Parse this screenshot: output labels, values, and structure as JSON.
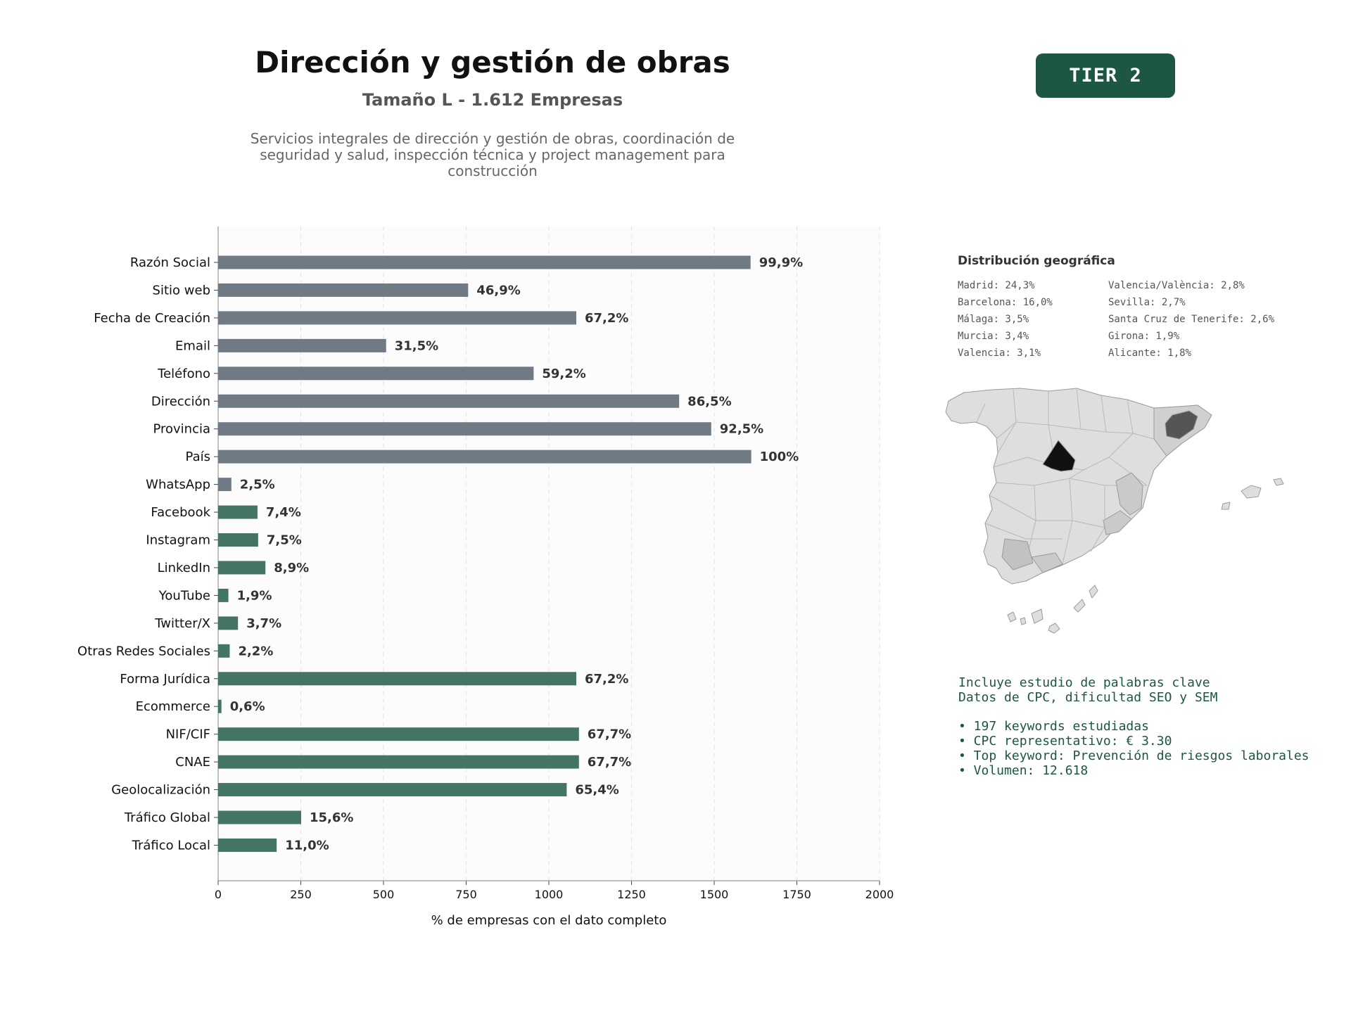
{
  "header": {
    "title": "Dirección y gestión de obras",
    "subtitle": "Tamaño L - 1.612 Empresas",
    "description": "Servicios integrales de dirección y gestión de obras, coordinación de seguridad y salud, inspección técnica y project management para construcción",
    "tier": "TIER 2"
  },
  "colors": {
    "gray_bar": "#6f7a84",
    "green_bar": "#447463",
    "tier_bg": "#1d5641"
  },
  "chart_data": {
    "type": "bar",
    "orientation": "horizontal",
    "xlabel": "% de empresas con el dato completo",
    "xlim": [
      0,
      2000
    ],
    "xticks": [
      0,
      250,
      500,
      750,
      1000,
      1250,
      1500,
      1750,
      2000
    ],
    "grid": "vertical dashed",
    "categories": [
      "Razón Social",
      "Sitio web",
      "Fecha de Creación",
      "Email",
      "Teléfono",
      "Dirección",
      "Provincia",
      "País",
      "WhatsApp",
      "Facebook",
      "Instagram",
      "LinkedIn",
      "YouTube",
      "Twitter/X",
      "Otras Redes Sociales",
      "Forma Jurídica",
      "Ecommerce",
      "NIF/CIF",
      "CNAE",
      "Geolocalización",
      "Tráfico Global",
      "Tráfico Local"
    ],
    "values": [
      1610,
      756,
      1083,
      508,
      954,
      1394,
      1491,
      1612,
      40,
      119,
      121,
      143,
      31,
      60,
      35,
      1083,
      10,
      1091,
      1091,
      1054,
      251,
      177
    ],
    "labels": [
      "99,9%",
      "46,9%",
      "67,2%",
      "31,5%",
      "59,2%",
      "86,5%",
      "92,5%",
      "100%",
      "2,5%",
      "7,4%",
      "7,5%",
      "8,9%",
      "1,9%",
      "3,7%",
      "2,2%",
      "67,2%",
      "0,6%",
      "67,7%",
      "67,7%",
      "65,4%",
      "15,6%",
      "11,0%"
    ],
    "bar_colors": [
      "gray",
      "gray",
      "gray",
      "gray",
      "gray",
      "gray",
      "gray",
      "gray",
      "gray",
      "green",
      "green",
      "green",
      "green",
      "green",
      "green",
      "green",
      "green",
      "green",
      "green",
      "green",
      "green",
      "green"
    ]
  },
  "geo": {
    "title": "Distribución geográfica",
    "items": [
      "Madrid: 24,3%",
      "Valencia/València: 2,8%",
      "Barcelona: 16,0%",
      "Sevilla: 2,7%",
      "Málaga: 3,5%",
      "Santa Cruz de Tenerife: 2,6%",
      "Murcia: 3,4%",
      "Girona: 1,9%",
      "Valencia: 3,1%",
      "Alicante: 1,8%"
    ]
  },
  "seo": {
    "line1": "Incluye estudio de palabras clave",
    "line2": "Datos de CPC, dificultad SEO y SEM",
    "bullets": [
      "• 197 keywords estudiadas",
      "• CPC representativo: € 3.30",
      "• Top keyword: Prevención de riesgos laborales",
      "• Volumen: 12.618"
    ]
  }
}
